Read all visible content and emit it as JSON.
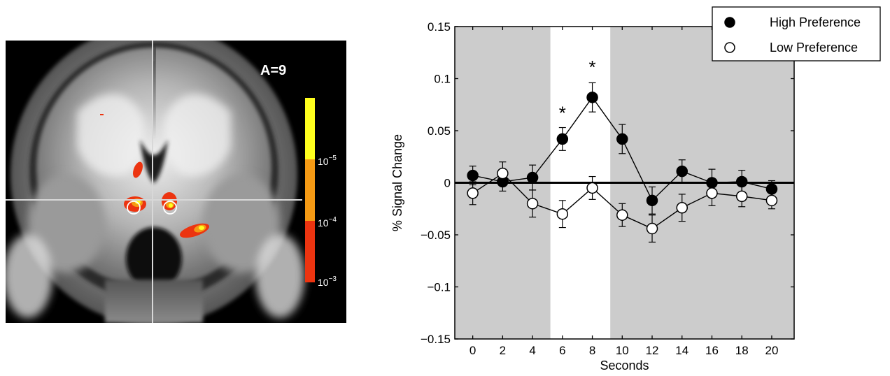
{
  "brain_panel": {
    "slice_label": "A=9",
    "colorbar_ticks": [
      "10",
      "10",
      "10"
    ],
    "colorbar_exponents": [
      "−5",
      "−4",
      "−3"
    ],
    "colorbar_colors": [
      "#ffff1e",
      "#f59a14",
      "#ec3410"
    ]
  },
  "chart_data": {
    "type": "line",
    "x_label": "Seconds",
    "y_label": "% Signal Change",
    "x": [
      0,
      2,
      4,
      6,
      8,
      10,
      12,
      14,
      16,
      18,
      20
    ],
    "x_ticks": [
      "0",
      "2",
      "4",
      "6",
      "8",
      "10",
      "12",
      "14",
      "16",
      "18",
      "20"
    ],
    "y_ticks": [
      0.15,
      0.1,
      0.05,
      0,
      -0.05,
      -0.1,
      -0.15
    ],
    "y_tick_labels": [
      "0.15",
      "0.1",
      "0.05",
      "0",
      "−0.05",
      "−0.1",
      "−0.15"
    ],
    "xlim": [
      -1.2,
      21.5
    ],
    "ylim": [
      -0.15,
      0.15
    ],
    "highlight_window": [
      5.2,
      9.2
    ],
    "shade_color": "#cccccc",
    "significance_marks": [
      {
        "x": 6,
        "y": 0.069,
        "label": "*"
      },
      {
        "x": 8,
        "y": 0.113,
        "label": "*"
      }
    ],
    "legend_position": "top-right",
    "series": [
      {
        "name": "High Preference",
        "marker": "filled",
        "values": [
          0.007,
          0.001,
          0.005,
          0.042,
          0.082,
          0.042,
          -0.017,
          0.011,
          0.0,
          0.001,
          -0.006
        ],
        "errors": [
          0.009,
          0.009,
          0.012,
          0.011,
          0.014,
          0.014,
          0.013,
          0.011,
          0.013,
          0.011,
          0.008
        ]
      },
      {
        "name": "Low Preference",
        "marker": "open",
        "values": [
          -0.01,
          0.009,
          -0.02,
          -0.03,
          -0.005,
          -0.031,
          -0.044,
          -0.024,
          -0.01,
          -0.013,
          -0.017
        ],
        "errors": [
          0.011,
          0.011,
          0.013,
          0.013,
          0.011,
          0.011,
          0.013,
          0.013,
          0.012,
          0.01,
          0.008
        ]
      }
    ]
  }
}
